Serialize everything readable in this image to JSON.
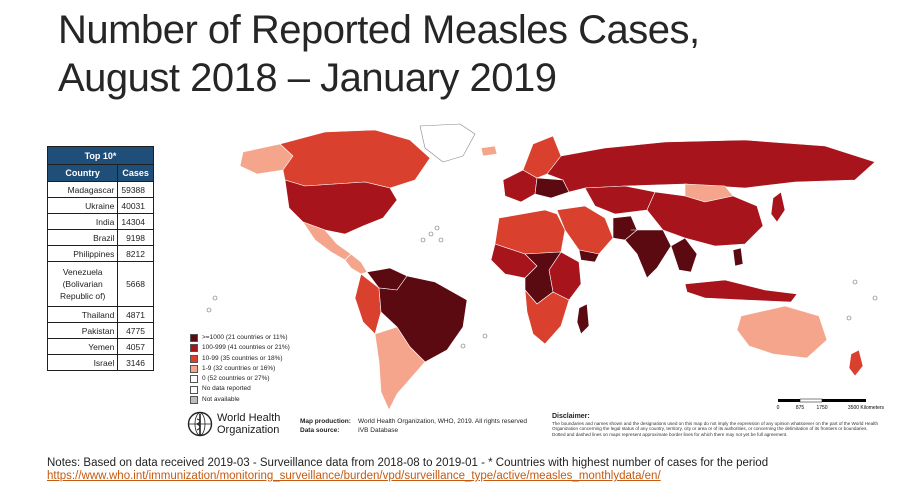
{
  "title": {
    "line1": "Number of Reported Measles Cases,",
    "line2": "August 2018 – January 2019"
  },
  "table": {
    "caption": "Top 10*",
    "col_country": "Country",
    "col_cases": "Cases",
    "rows": [
      {
        "country": "Madagascar",
        "cases": "59388"
      },
      {
        "country": "Ukraine",
        "cases": "40031"
      },
      {
        "country": "India",
        "cases": "14304"
      },
      {
        "country": "Brazil",
        "cases": "9198"
      },
      {
        "country": "Philippines",
        "cases": "8212"
      },
      {
        "country": "Venezuela (Bolivarian Republic of)",
        "cases": "5668"
      },
      {
        "country": "Thailand",
        "cases": "4871"
      },
      {
        "country": "Pakistan",
        "cases": "4775"
      },
      {
        "country": "Yemen",
        "cases": "4057"
      },
      {
        "country": "Israel",
        "cases": "3146"
      }
    ]
  },
  "legend": [
    {
      "label": ">=1000 (21 countries or 11%)",
      "color": "#5c0a12"
    },
    {
      "label": "100-999 (41 countries or 21%)",
      "color": "#a8141c"
    },
    {
      "label": "10-99 (35 countries or 18%)",
      "color": "#d9412e"
    },
    {
      "label": "1-9 (32 countries or 16%)",
      "color": "#f5a58c"
    },
    {
      "label": "0 (52 countries or 27%)",
      "color": "#ffffff"
    },
    {
      "label": "No data reported",
      "color": "#ffffff"
    },
    {
      "label": "Not available",
      "color": "#bdbdbd"
    }
  ],
  "who": {
    "line1": "World Health",
    "line2": "Organization"
  },
  "production": {
    "label1": "Map production:",
    "value1": "World Health Organization, WHO, 2019. All rights reserved",
    "label2": "Data source:",
    "value2": "IVB Database"
  },
  "disclaimer": {
    "heading": "Disclaimer:",
    "text": "The boundaries and names shown and the designations used on this map do not imply the expression of any opinion whatsoever on the part of the World Health Organization concerning the legal status of any country, territory, city or area or of its authorities, or concerning the delimitation of its frontiers or boundaries. Dotted and dashed lines on maps represent approximate border lines for which there may not yet be full agreement."
  },
  "scale": {
    "t0": "0",
    "t1": "875",
    "t2": "1750",
    "t3": "3500 Kilometers"
  },
  "notes": {
    "text": "Notes: Based on data received 2019-03 - Surveillance data from 2018-08 to 2019-01 - * Countries with highest number of cases for the period",
    "link": "https://www.who.int/immunization/monitoring_surveillance/burden/vpd/surveillance_type/active/measles_monthlydata/en/"
  }
}
